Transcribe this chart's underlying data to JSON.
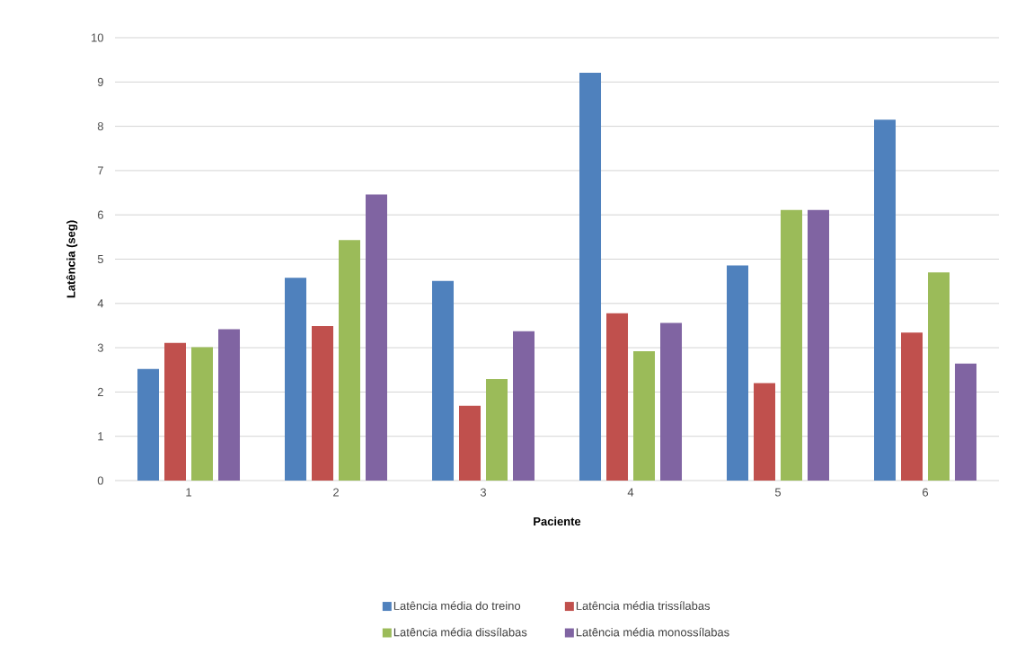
{
  "chart_data": {
    "type": "bar",
    "xlabel": "Paciente",
    "ylabel": "Latência (seg)",
    "categories": [
      "1",
      "2",
      "3",
      "4",
      "5",
      "6"
    ],
    "series": [
      {
        "name": "Latência média do treino",
        "color": "#4f81bd",
        "values": [
          2.52,
          4.58,
          4.51,
          9.21,
          4.86,
          8.15
        ]
      },
      {
        "name": "Latência média trissílabas",
        "color": "#c0504d",
        "values": [
          3.11,
          3.49,
          1.69,
          3.78,
          2.2,
          3.34
        ]
      },
      {
        "name": "Latência média dissílabas",
        "color": "#9bbb59",
        "values": [
          3.01,
          5.43,
          2.29,
          2.92,
          6.11,
          4.7
        ]
      },
      {
        "name": "Latência média monossílabas",
        "color": "#8064a2",
        "values": [
          3.42,
          6.46,
          3.37,
          3.56,
          6.11,
          2.64
        ]
      }
    ],
    "ylim": [
      0,
      10
    ],
    "yticks": [
      0,
      1,
      2,
      3,
      4,
      5,
      6,
      7,
      8,
      9,
      10
    ],
    "grid": "y",
    "legend": "bottom"
  }
}
